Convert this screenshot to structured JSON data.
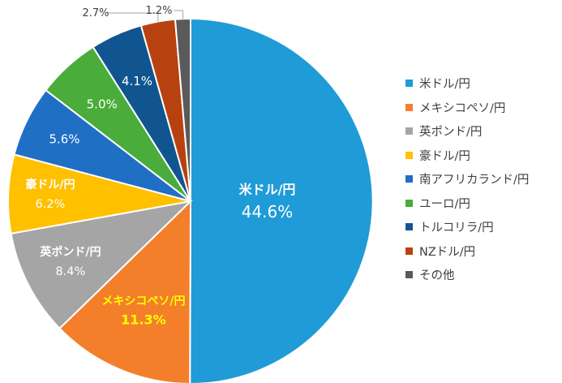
{
  "chart_data": {
    "type": "pie",
    "categories": [
      "米ドル/円",
      "メキシコペソ/円",
      "英ポンド/円",
      "豪ドル/円",
      "南アフリカランド/円",
      "ユーロ/円",
      "トルコリラ/円",
      "NZドル/円",
      "その他"
    ],
    "values": [
      44.6,
      11.3,
      8.4,
      6.2,
      5.6,
      5.0,
      4.1,
      2.7,
      1.2
    ],
    "value_labels": [
      "44.6%",
      "11.3%",
      "8.4%",
      "6.2%",
      "5.6%",
      "5.0%",
      "4.1%",
      "2.7%",
      "1.2%"
    ],
    "slice_names_shown": [
      "米ドル/円",
      "メキシコペソ/円",
      "英ポンド/円",
      "豪ドル/円",
      "",
      "",
      "",
      "",
      ""
    ],
    "colors": [
      "#1f9bd7",
      "#f47f2b",
      "#a5a5a5",
      "#ffc000",
      "#1f6fc5",
      "#4aac3a",
      "#115590",
      "#b8420f",
      "#5a5a5a"
    ],
    "highlight_label_color": "#ffff00",
    "legend_position": "right"
  }
}
